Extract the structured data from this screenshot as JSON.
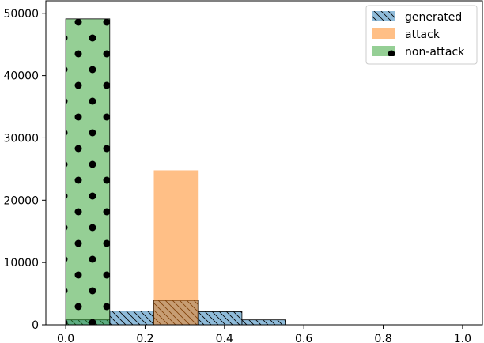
{
  "chart_data": {
    "type": "bar",
    "title": "",
    "xlabel": "",
    "ylabel": "",
    "xlim": [
      -0.05,
      1.05
    ],
    "ylim": [
      0,
      52000
    ],
    "grid": false,
    "legend_placement": "top-right",
    "x_ticks": [
      "0.0",
      "0.2",
      "0.4",
      "0.6",
      "0.8",
      "1.0"
    ],
    "y_ticks": [
      "0",
      "10000",
      "20000",
      "30000",
      "40000",
      "50000"
    ],
    "series": [
      {
        "name": "generated",
        "color": "#1f77b4",
        "hatch": "diagonal",
        "bins": [
          {
            "x0": 0.0,
            "x1": 0.111,
            "value": 800
          },
          {
            "x0": 0.111,
            "x1": 0.222,
            "value": 2200
          },
          {
            "x0": 0.222,
            "x1": 0.333,
            "value": 3900
          },
          {
            "x0": 0.333,
            "x1": 0.444,
            "value": 2100
          },
          {
            "x0": 0.444,
            "x1": 0.555,
            "value": 800
          }
        ]
      },
      {
        "name": "attack",
        "color": "#ff7f0e",
        "hatch": "none",
        "bins": [
          {
            "x0": 0.222,
            "x1": 0.333,
            "value": 24800
          }
        ]
      },
      {
        "name": "non-attack",
        "color": "#2ca02c",
        "hatch": "dots",
        "bins": [
          {
            "x0": 0.0,
            "x1": 0.111,
            "value": 49100
          }
        ]
      }
    ]
  }
}
